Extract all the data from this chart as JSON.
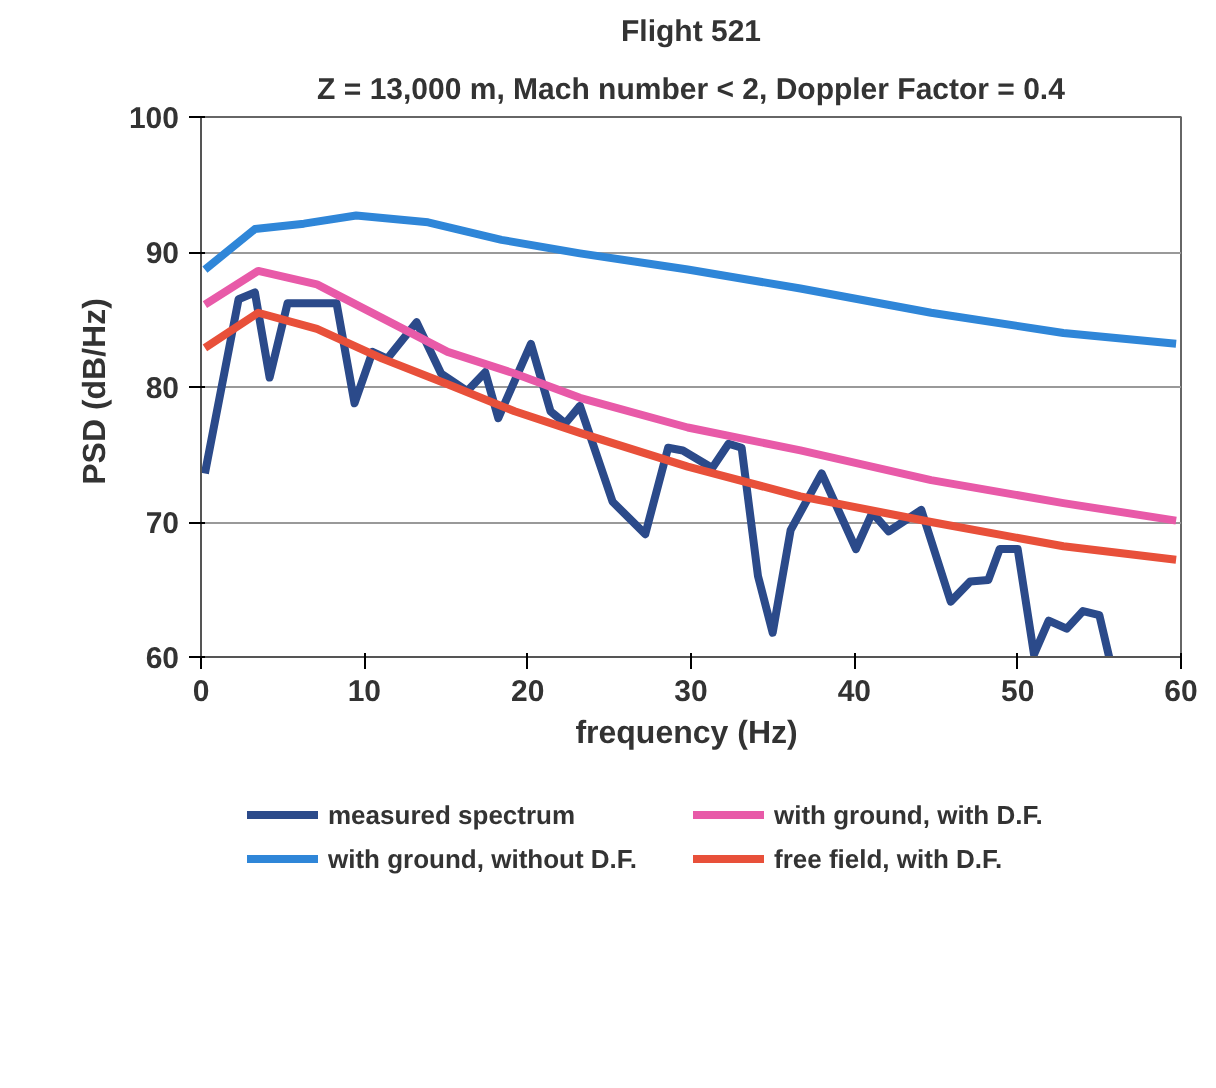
{
  "chart_data": {
    "type": "line",
    "title": "Flight 521",
    "subtitle": "Z = 13,000 m, Mach number < 2, Doppler Factor = 0.4",
    "xlabel": "frequency  (Hz)",
    "ylabel": "PSD  (dB/Hz)",
    "xlim": [
      0,
      60
    ],
    "xticks": [
      0,
      10,
      20,
      30,
      40,
      50,
      60
    ],
    "ylim": [
      60,
      100
    ],
    "yticks": [
      60,
      70,
      80,
      90,
      100
    ],
    "grid": "y",
    "legend": "bottom",
    "line_style": "solid",
    "series": [
      {
        "name": "measured spectrum",
        "color": "#2b4a8a",
        "x": [
          0.24,
          2.3,
          3.3,
          4.2,
          5.3,
          8.3,
          9.4,
          10.5,
          11.4,
          13.2,
          14.7,
          16.3,
          17.4,
          18.2,
          20.2,
          21.4,
          22.3,
          23.2,
          25.2,
          27.2,
          28.6,
          29.5,
          31.3,
          32.3,
          33.1,
          34.1,
          35,
          36.1,
          38,
          40.1,
          41.1,
          42.1,
          44.1,
          45.9,
          47.1,
          48.2,
          48.9,
          50,
          51,
          51.9,
          53,
          54,
          55,
          55.6
        ],
        "values": [
          73.6,
          86.5,
          87,
          80.7,
          86.2,
          86.2,
          78.8,
          82.6,
          82.1,
          84.8,
          81,
          79.7,
          81.1,
          77.7,
          83.2,
          78.2,
          77.3,
          78.6,
          71.5,
          69.1,
          75.5,
          75.3,
          74,
          75.8,
          75.5,
          66,
          61.8,
          69.4,
          73.6,
          68,
          70.7,
          69.3,
          70.9,
          64.1,
          65.6,
          65.7,
          68,
          68,
          60.2,
          62.7,
          62.1,
          63.4,
          63.1,
          60
        ]
      },
      {
        "name": "with ground, without D.F.",
        "color": "#2f86d8",
        "x": [
          0.24,
          3.3,
          6.3,
          9.5,
          13.9,
          18.4,
          23.2,
          29.8,
          36.7,
          44.7,
          52.8,
          59.7
        ],
        "values": [
          88.7,
          91.7,
          92.1,
          92.7,
          92.2,
          90.9,
          89.9,
          88.7,
          87.3,
          85.5,
          84,
          83.2
        ]
      },
      {
        "name": "with ground, with D.F.",
        "color": "#e85aa8",
        "x": [
          0.24,
          3.5,
          7.1,
          11.1,
          15.1,
          19.2,
          23.2,
          29.8,
          36.7,
          44.7,
          52.8,
          59.7
        ],
        "values": [
          86.1,
          88.6,
          87.6,
          85.1,
          82.6,
          81,
          79.2,
          77,
          75.3,
          73.1,
          71.4,
          70.1
        ]
      },
      {
        "name": "free field, with D.F.",
        "color": "#e8503a",
        "x": [
          0.24,
          3.5,
          7.1,
          11.1,
          15.1,
          19.2,
          23.2,
          29.8,
          36.7,
          44.7,
          52.8,
          59.7
        ],
        "values": [
          82.9,
          85.5,
          84.3,
          82.1,
          80.2,
          78.2,
          76.6,
          74.1,
          71.9,
          70,
          68.2,
          67.2
        ]
      }
    ]
  }
}
